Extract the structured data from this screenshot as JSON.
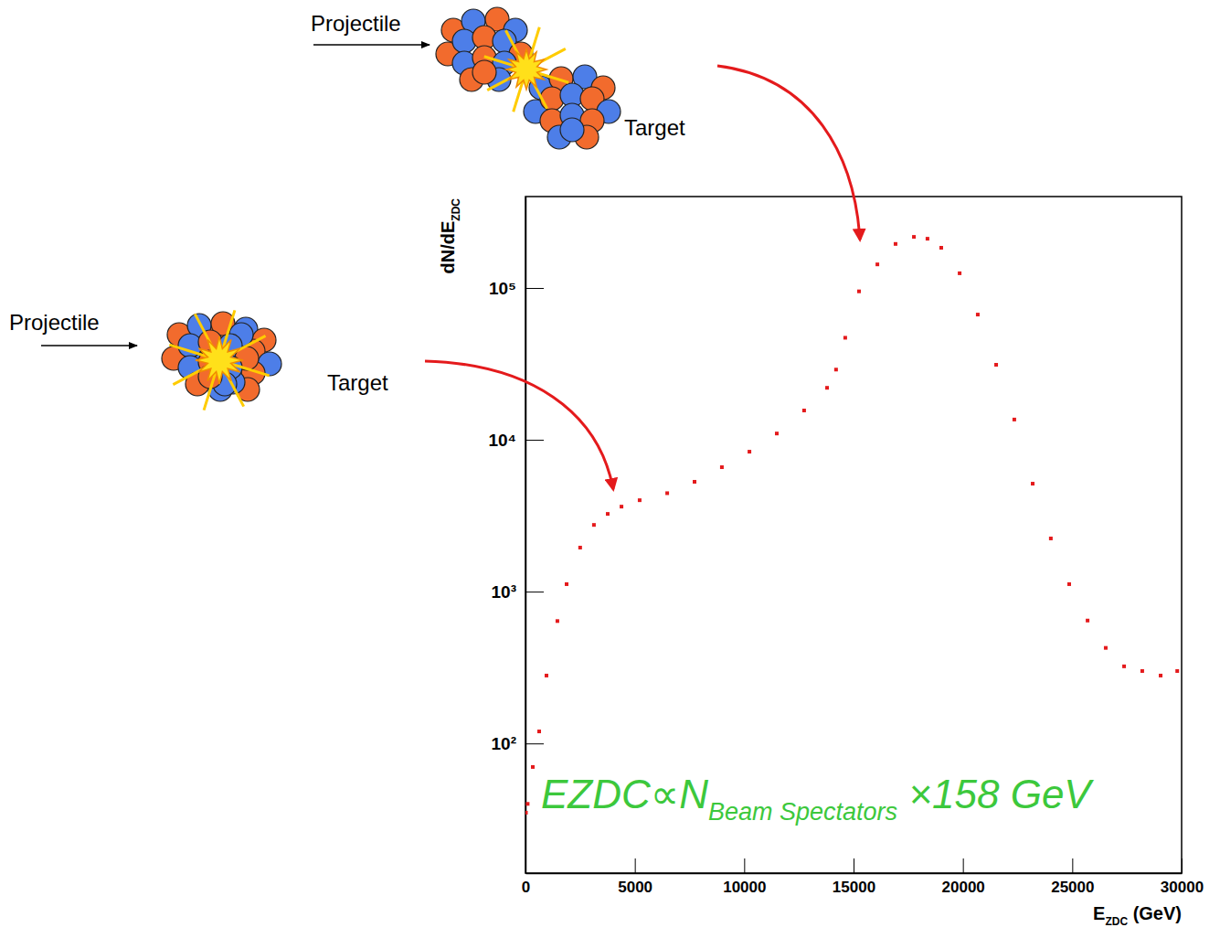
{
  "chart_data": {
    "type": "scatter",
    "x_label": [
      "E",
      "ZDC",
      " (GeV)"
    ],
    "y_label": [
      "dN/dE",
      "ZDC"
    ],
    "annotation": [
      "EZDC∝N",
      "Beam Spectators",
      " ×158 GeV"
    ],
    "x": [
      20,
      100,
      334,
      627,
      960,
      1460,
      1880,
      2500,
      3130,
      3760,
      4390,
      5220,
      6480,
      7730,
      8980,
      10240,
      11490,
      12740,
      13790,
      14200,
      14620,
      15250,
      16090,
      16920,
      17760,
      18380,
      19010,
      19850,
      20680,
      21520,
      22350,
      23190,
      24020,
      24860,
      25700,
      26530,
      27370,
      28200,
      29040,
      29800
    ],
    "values": [
      35,
      40,
      70,
      120,
      280,
      640,
      1120,
      1950,
      2750,
      3250,
      3630,
      4000,
      4450,
      5290,
      6600,
      8350,
      11000,
      15600,
      22000,
      29000,
      47000,
      95000,
      143000,
      195000,
      217000,
      211000,
      184000,
      125000,
      66800,
      31200,
      13600,
      5140,
      2240,
      1120,
      645,
      426,
      322,
      300,
      280,
      300
    ],
    "color": "#e41a1c",
    "marker": "square",
    "log": "y",
    "xlim": [
      0,
      30000
    ],
    "ylim": [
      14,
      400000
    ],
    "xticks": [
      0,
      5000,
      10000,
      15000,
      20000,
      25000,
      30000
    ],
    "yticks": [
      {
        "value": 100,
        "label": "10²"
      },
      {
        "value": 1000,
        "label": "10³"
      },
      {
        "value": 10000,
        "label": "10⁴"
      },
      {
        "value": 100000,
        "label": "10⁵"
      }
    ]
  },
  "diagrams": {
    "peripheral": {
      "projectile": "Projectile",
      "target": "Target"
    },
    "central": {
      "projectile": "Projectile",
      "target": "Target"
    }
  }
}
